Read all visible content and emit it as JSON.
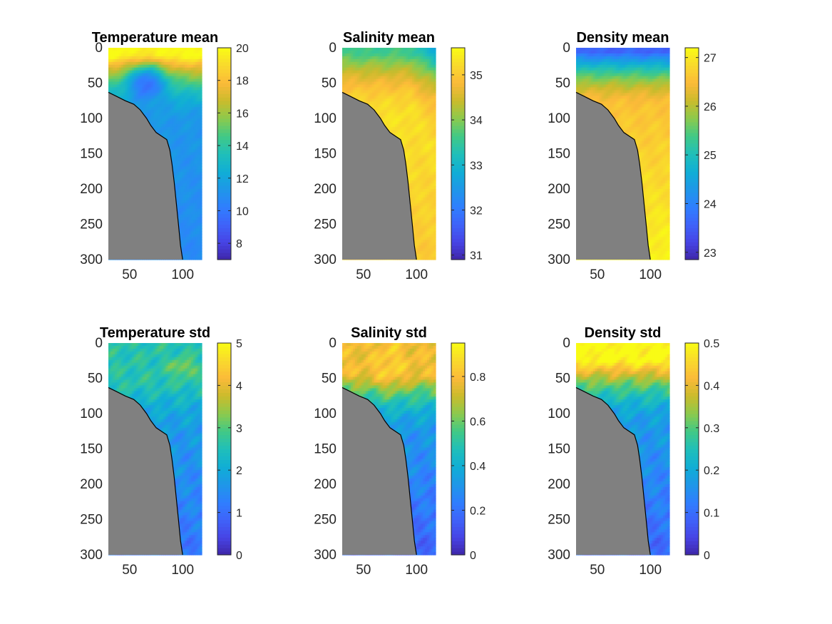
{
  "colormap": [
    "#3e26a8",
    "#4744e5",
    "#3f63f9",
    "#2f7ffe",
    "#1e97e8",
    "#10aed5",
    "#20bfb9",
    "#41c986",
    "#8bca4d",
    "#cabb2c",
    "#fbba39",
    "#f9d92d",
    "#f9fb15"
  ],
  "land_color": "#808080",
  "panels": [
    {
      "title": "Temperature mean",
      "variable": "temperature",
      "statistic": "mean",
      "xlim": [
        30,
        118
      ],
      "ylim": [
        0,
        300
      ],
      "y_reversed": true,
      "xticks": [
        "50",
        "100"
      ],
      "yticks": [
        "0",
        "50",
        "100",
        "150",
        "200",
        "250",
        "300"
      ],
      "colorbar": {
        "range": [
          7,
          20
        ],
        "ticks": [
          "8",
          "10",
          "12",
          "14",
          "16",
          "18",
          "20"
        ]
      },
      "field": {
        "surface": 20,
        "surface_depth": 12,
        "base": 11.3,
        "deep": 10.7,
        "anomaly": [
          {
            "x": 66,
            "y": 52,
            "rx": 18,
            "ry": 26,
            "value": 9.5
          }
        ]
      }
    },
    {
      "title": "Salinity mean",
      "variable": "salinity",
      "statistic": "mean",
      "xlim": [
        30,
        118
      ],
      "ylim": [
        0,
        300
      ],
      "y_reversed": true,
      "xticks": [
        "50",
        "100"
      ],
      "yticks": [
        "0",
        "50",
        "100",
        "150",
        "200",
        "250",
        "300"
      ],
      "colorbar": {
        "range": [
          30.9,
          35.6
        ],
        "ticks": [
          "31",
          "32",
          "33",
          "34",
          "35"
        ]
      },
      "field": {
        "surface": 33.6,
        "surface_depth": 8,
        "base": 35.3,
        "deep": 35.0,
        "gradient_depth": 95,
        "offshore_fresh": true
      }
    },
    {
      "title": "Density mean",
      "variable": "density",
      "statistic": "mean",
      "xlim": [
        30,
        118
      ],
      "ylim": [
        0,
        300
      ],
      "y_reversed": true,
      "xticks": [
        "50",
        "100"
      ],
      "yticks": [
        "0",
        "50",
        "100",
        "150",
        "200",
        "250",
        "300"
      ],
      "colorbar": {
        "range": [
          22.85,
          27.2
        ],
        "ticks": [
          "23",
          "24",
          "25",
          "26",
          "27"
        ]
      },
      "field": {
        "surface": 23.6,
        "surface_depth": 6,
        "base": 26.6,
        "deep": 27.1,
        "gradient_depth": 85
      }
    },
    {
      "title": "Temperature std",
      "variable": "temperature",
      "statistic": "std",
      "xlim": [
        30,
        118
      ],
      "ylim": [
        0,
        300
      ],
      "y_reversed": true,
      "xticks": [
        "50",
        "100"
      ],
      "yticks": [
        "0",
        "50",
        "100",
        "150",
        "200",
        "250",
        "300"
      ],
      "colorbar": {
        "range": [
          0,
          5
        ],
        "ticks": [
          "0",
          "1",
          "2",
          "3",
          "4",
          "5"
        ]
      },
      "field": {
        "surface": 2.6,
        "surface_depth": 60,
        "base": 1.6,
        "deep": 0.9,
        "anomaly": [
          {
            "x": 100,
            "y": 35,
            "rx": 12,
            "ry": 12,
            "value": 3.4
          }
        ]
      }
    },
    {
      "title": "Salinity std",
      "variable": "salinity",
      "statistic": "std",
      "xlim": [
        30,
        118
      ],
      "ylim": [
        0,
        300
      ],
      "y_reversed": true,
      "xticks": [
        "50",
        "100"
      ],
      "yticks": [
        "0",
        "50",
        "100",
        "150",
        "200",
        "250",
        "300"
      ],
      "colorbar": {
        "range": [
          0,
          0.95
        ],
        "ticks": [
          "0",
          "0.2",
          "0.4",
          "0.6",
          "0.8"
        ]
      },
      "field": {
        "surface": 0.78,
        "surface_depth": 45,
        "base": 0.3,
        "deep": 0.12,
        "anomaly": [
          {
            "x": 75,
            "y": 30,
            "rx": 14,
            "ry": 30,
            "value": 0.85
          }
        ]
      }
    },
    {
      "title": "Density std",
      "variable": "density",
      "statistic": "std",
      "xlim": [
        30,
        118
      ],
      "ylim": [
        0,
        300
      ],
      "y_reversed": true,
      "xticks": [
        "50",
        "100"
      ],
      "yticks": [
        "0",
        "50",
        "100",
        "150",
        "200",
        "250",
        "300"
      ],
      "colorbar": {
        "range": [
          0,
          0.5
        ],
        "ticks": [
          "0",
          "0.1",
          "0.2",
          "0.3",
          "0.4",
          "0.5"
        ]
      },
      "field": {
        "surface": 0.5,
        "surface_depth": 25,
        "base": 0.17,
        "deep": 0.08
      }
    }
  ],
  "coastline": {
    "x": [
      30,
      38,
      46,
      54,
      60,
      66,
      70,
      75,
      80,
      85,
      88,
      90,
      92,
      94,
      96,
      98,
      100
    ],
    "depth": [
      63,
      69,
      75,
      80,
      88,
      100,
      110,
      120,
      125,
      130,
      145,
      165,
      190,
      220,
      250,
      280,
      300
    ]
  }
}
